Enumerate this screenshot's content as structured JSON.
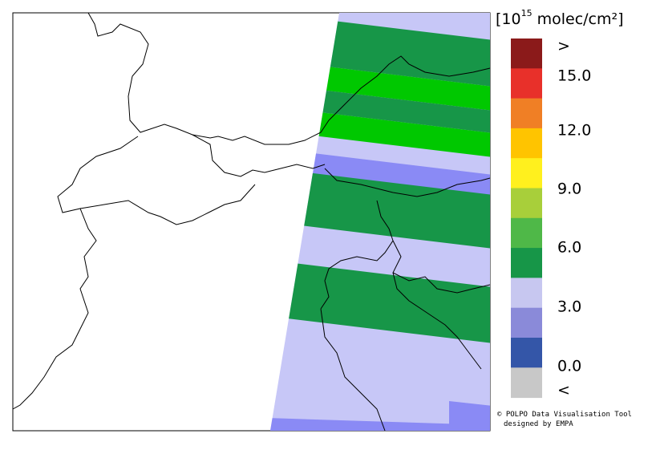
{
  "legend": {
    "title_base": "[10",
    "title_exponent": "15",
    "title_unit": "molec/cm²]",
    "swatches": [
      "#8b1a1a",
      "#e8302a",
      "#f07f25",
      "#ffc400",
      "#fff01e",
      "#a8cf3a",
      "#4fb848",
      "#179648",
      "#c7c7f0",
      "#8a8ad9",
      "#3456a8",
      "#c8c8c8"
    ],
    "labels": [
      ">",
      "15.0",
      "12.0",
      "9.0",
      "6.0",
      "3.0",
      "0.0",
      "<"
    ]
  },
  "credit": {
    "line1": "© POLPO Data Visualisation Tool",
    "line2": "designed by EMPA"
  }
}
